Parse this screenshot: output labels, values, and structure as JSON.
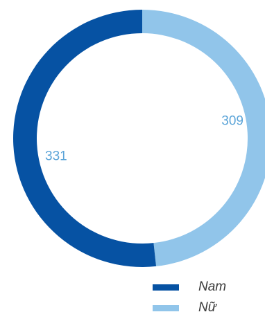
{
  "chart_data": {
    "type": "pie",
    "variant": "donut",
    "title": "",
    "categories": [
      "Nam",
      "Nữ"
    ],
    "values": [
      331,
      309
    ],
    "colors": [
      "#0652a3",
      "#91c5ea"
    ],
    "data_labels": [
      "331",
      "309"
    ],
    "label_color": "#5ba4d8",
    "legend": "bottom-right"
  }
}
